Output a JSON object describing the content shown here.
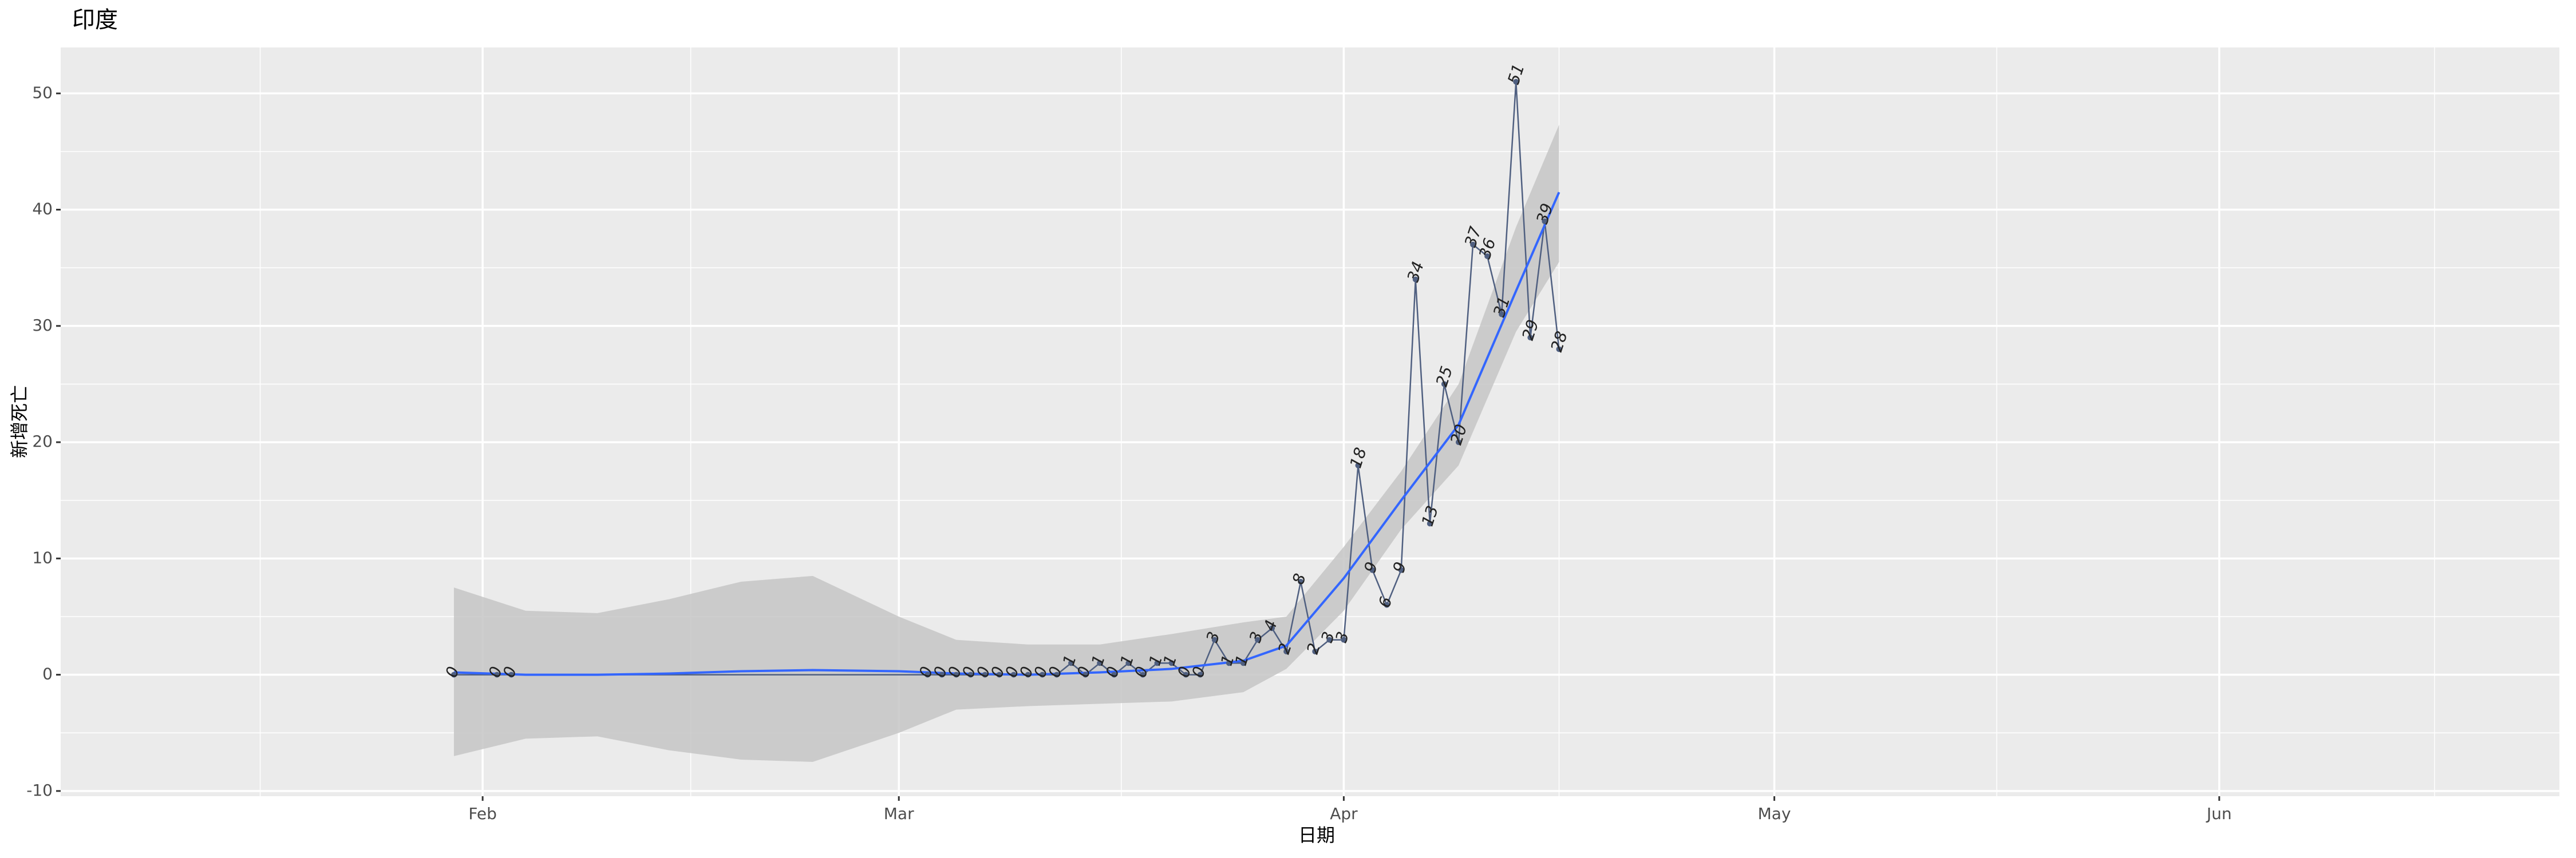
{
  "chart_data": {
    "type": "line",
    "title": "印度",
    "x_label": "日期",
    "y_label": "新增死亡",
    "x": [
      30,
      33,
      34,
      63,
      64,
      65,
      66,
      67,
      68,
      69,
      70,
      71,
      72,
      73,
      74,
      75,
      76,
      77,
      78,
      79,
      80,
      81,
      82,
      83,
      84,
      85,
      86,
      87,
      88,
      89,
      90,
      91,
      92,
      93,
      94,
      95,
      96,
      97,
      98,
      99,
      100,
      101,
      102,
      103,
      104,
      105,
      106,
      107
    ],
    "values": [
      0,
      0,
      0,
      0,
      0,
      0,
      0,
      0,
      0,
      0,
      0,
      0,
      0,
      1,
      0,
      1,
      0,
      1,
      0,
      1,
      1,
      0,
      0,
      3,
      1,
      1,
      3,
      4,
      2,
      8,
      2,
      3,
      3,
      18,
      9,
      6,
      9,
      34,
      13,
      25,
      20,
      37,
      36,
      31,
      51,
      29,
      39,
      28
    ],
    "color": "#4f5f80",
    "smooth": {
      "x": [
        30,
        35,
        40,
        45,
        50,
        55,
        61,
        65,
        70,
        75,
        80,
        85,
        88,
        92,
        96,
        100,
        104,
        107
      ],
      "values": [
        0.2,
        0,
        0,
        0.1,
        0.3,
        0.4,
        0.3,
        0.1,
        0,
        0.2,
        0.5,
        1.2,
        2.5,
        8.3,
        15,
        21.5,
        33,
        41.5
      ],
      "upper": [
        7.5,
        5.5,
        5.3,
        6.5,
        8,
        8.5,
        5,
        3,
        2.6,
        2.6,
        3.5,
        4.5,
        5,
        11,
        17.5,
        25,
        38.5,
        47.3
      ],
      "lower": [
        -7,
        -5.5,
        -5.3,
        -6.5,
        -7.3,
        -7.5,
        -5,
        -3,
        -2.7,
        -2.5,
        -2.3,
        -1.5,
        0.5,
        5.5,
        12.5,
        18,
        29.5,
        35.5
      ],
      "color": "#3366ff",
      "band_color": "#c6c6c6"
    },
    "xlim": [
      2.6,
      176.7
    ],
    "xticks": [
      {
        "value": 32,
        "label": "Feb"
      },
      {
        "value": 61,
        "label": "Mar"
      },
      {
        "value": 92,
        "label": "Apr"
      },
      {
        "value": 122,
        "label": "May"
      },
      {
        "value": 153,
        "label": "Jun"
      }
    ],
    "xminor": [
      16.5,
      46.5,
      76.5,
      107,
      137.5,
      168
    ],
    "ylim": [
      -10.45,
      53.95
    ],
    "yticks": [
      -10,
      0,
      10,
      20,
      30,
      40,
      50
    ],
    "yminor": [
      -5,
      5,
      15,
      25,
      35,
      45
    ],
    "grid": true
  }
}
